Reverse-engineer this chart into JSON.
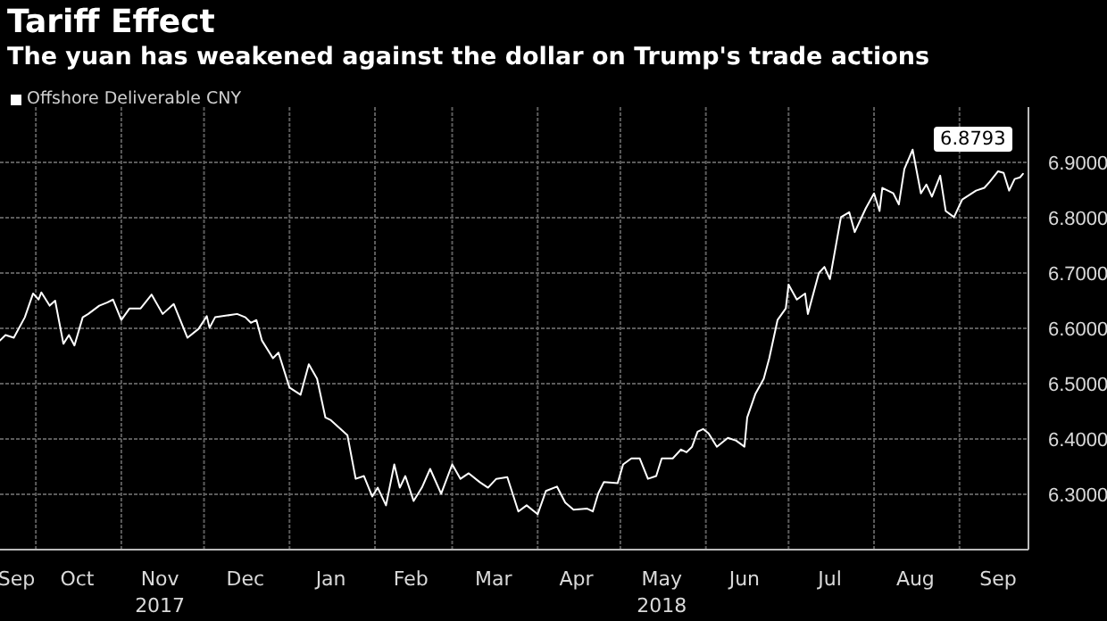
{
  "chart_data": {
    "type": "line",
    "title": "Tariff Effect",
    "subtitle": "The yuan has weakened against the dollar on Trump's trade actions",
    "legend": "top left",
    "grid": true,
    "marker": "none",
    "line_style": "solid",
    "xlim": [
      "2017-09-18",
      "2018-09-26"
    ],
    "xticks": [
      {
        "value": "2017-09-24",
        "label": "Sep"
      },
      {
        "value": "2017-10-01",
        "label": null
      },
      {
        "value": "2017-10-16",
        "label": "Oct"
      },
      {
        "value": "2017-11-01",
        "label": null
      },
      {
        "value": "2017-11-15",
        "label": "Nov\n2017"
      },
      {
        "value": "2017-12-01",
        "label": null
      },
      {
        "value": "2017-12-16",
        "label": "Dec"
      },
      {
        "value": "2018-01-01",
        "label": null
      },
      {
        "value": "2018-01-16",
        "label": "Jan"
      },
      {
        "value": "2018-02-01",
        "label": null
      },
      {
        "value": "2018-02-14",
        "label": "Feb"
      },
      {
        "value": "2018-03-01",
        "label": null
      },
      {
        "value": "2018-03-16",
        "label": "Mar"
      },
      {
        "value": "2018-04-01",
        "label": null
      },
      {
        "value": "2018-04-15",
        "label": "Apr"
      },
      {
        "value": "2018-05-01",
        "label": null
      },
      {
        "value": "2018-05-16",
        "label": "May\n2018"
      },
      {
        "value": "2018-06-01",
        "label": null
      },
      {
        "value": "2018-06-15",
        "label": "Jun"
      },
      {
        "value": "2018-07-01",
        "label": null
      },
      {
        "value": "2018-07-16",
        "label": "Jul"
      },
      {
        "value": "2018-08-01",
        "label": null
      },
      {
        "value": "2018-08-16",
        "label": "Aug"
      },
      {
        "value": "2018-09-01",
        "label": null
      },
      {
        "value": "2018-09-15",
        "label": "Sep"
      }
    ],
    "ylim": [
      6.2,
      7.0
    ],
    "yticks": [
      {
        "value": 6.3,
        "label": "6.3000"
      },
      {
        "value": 6.4,
        "label": "6.4000"
      },
      {
        "value": 6.5,
        "label": "6.5000"
      },
      {
        "value": 6.6,
        "label": "6.6000"
      },
      {
        "value": 6.7,
        "label": "6.7000"
      },
      {
        "value": 6.8,
        "label": "6.8000"
      },
      {
        "value": 6.9,
        "label": "6.9000"
      }
    ],
    "annotations": [
      {
        "text": "6.8793",
        "x": "2018-09-24",
        "y": 6.8793
      }
    ],
    "x": [
      "2017-09-18",
      "2017-09-20",
      "2017-09-23",
      "2017-09-27",
      "2017-09-30",
      "2017-10-02",
      "2017-10-03",
      "2017-10-06",
      "2017-10-08",
      "2017-10-11",
      "2017-10-13",
      "2017-10-15",
      "2017-10-18",
      "2017-10-20",
      "2017-10-24",
      "2017-10-27",
      "2017-10-29",
      "2017-11-01",
      "2017-11-04",
      "2017-11-08",
      "2017-11-12",
      "2017-11-16",
      "2017-11-20",
      "2017-11-25",
      "2017-11-29",
      "2017-12-02",
      "2017-12-03",
      "2017-12-05",
      "2017-12-13",
      "2017-12-16",
      "2017-12-18",
      "2017-12-20",
      "2017-12-22",
      "2017-12-26",
      "2017-12-28",
      "2018-01-01",
      "2018-01-05",
      "2018-01-08",
      "2018-01-11",
      "2018-01-14",
      "2018-01-16",
      "2018-01-22",
      "2018-01-25",
      "2018-01-28",
      "2018-01-31",
      "2018-02-02",
      "2018-02-05",
      "2018-02-08",
      "2018-02-10",
      "2018-02-12",
      "2018-02-15",
      "2018-02-18",
      "2018-02-21",
      "2018-02-25",
      "2018-03-01",
      "2018-03-04",
      "2018-03-07",
      "2018-03-11",
      "2018-03-14",
      "2018-03-17",
      "2018-03-21",
      "2018-03-25",
      "2018-03-28",
      "2018-04-01",
      "2018-04-04",
      "2018-04-08",
      "2018-04-11",
      "2018-04-14",
      "2018-04-19",
      "2018-04-21",
      "2018-04-23",
      "2018-04-25",
      "2018-04-30",
      "2018-05-02",
      "2018-05-05",
      "2018-05-08",
      "2018-05-11",
      "2018-05-14",
      "2018-05-16",
      "2018-05-20",
      "2018-05-23",
      "2018-05-25",
      "2018-05-27",
      "2018-05-29",
      "2018-05-31",
      "2018-06-02",
      "2018-06-05",
      "2018-06-09",
      "2018-06-12",
      "2018-06-15",
      "2018-06-16",
      "2018-06-19",
      "2018-06-22",
      "2018-06-24",
      "2018-06-27",
      "2018-06-30",
      "2018-07-01",
      "2018-07-04",
      "2018-07-07",
      "2018-07-08",
      "2018-07-12",
      "2018-07-14",
      "2018-07-16",
      "2018-07-20",
      "2018-07-23",
      "2018-07-25",
      "2018-07-29",
      "2018-08-01",
      "2018-08-03",
      "2018-08-04",
      "2018-08-08",
      "2018-08-10",
      "2018-08-12",
      "2018-08-15",
      "2018-08-18",
      "2018-08-20",
      "2018-08-22",
      "2018-08-25",
      "2018-08-27",
      "2018-08-30",
      "2018-09-02",
      "2018-09-07",
      "2018-09-10",
      "2018-09-12",
      "2018-09-15",
      "2018-09-17",
      "2018-09-19",
      "2018-09-21",
      "2018-09-23",
      "2018-09-24"
    ],
    "series": [
      {
        "name": "Offshore Deliverable CNY",
        "color": "#ffffff",
        "values": [
          6.578,
          6.588,
          6.583,
          6.62,
          6.663,
          6.652,
          6.665,
          6.641,
          6.65,
          6.572,
          6.588,
          6.569,
          6.62,
          6.626,
          6.641,
          6.647,
          6.652,
          6.615,
          6.636,
          6.636,
          6.661,
          6.626,
          6.644,
          6.583,
          6.599,
          6.622,
          6.601,
          6.62,
          6.626,
          6.62,
          6.61,
          6.615,
          6.578,
          6.546,
          6.556,
          6.493,
          6.48,
          6.535,
          6.509,
          6.439,
          6.434,
          6.407,
          6.328,
          6.333,
          6.296,
          6.312,
          6.28,
          6.354,
          6.312,
          6.333,
          6.288,
          6.312,
          6.346,
          6.301,
          6.354,
          6.328,
          6.338,
          6.322,
          6.312,
          6.328,
          6.331,
          6.269,
          6.28,
          6.264,
          6.306,
          6.314,
          6.285,
          6.272,
          6.274,
          6.269,
          6.302,
          6.322,
          6.32,
          6.354,
          6.365,
          6.365,
          6.328,
          6.333,
          6.365,
          6.365,
          6.381,
          6.376,
          6.386,
          6.413,
          6.418,
          6.41,
          6.386,
          6.402,
          6.397,
          6.386,
          6.439,
          6.482,
          6.509,
          6.546,
          6.615,
          6.636,
          6.679,
          6.652,
          6.663,
          6.626,
          6.7,
          6.711,
          6.689,
          6.801,
          6.81,
          6.774,
          6.817,
          6.844,
          6.812,
          6.854,
          6.844,
          6.824,
          6.888,
          6.923,
          6.844,
          6.86,
          6.838,
          6.876,
          6.812,
          6.801,
          6.833,
          6.849,
          6.854,
          6.865,
          6.884,
          6.881,
          6.849,
          6.87,
          6.873,
          6.8793
        ]
      }
    ]
  }
}
